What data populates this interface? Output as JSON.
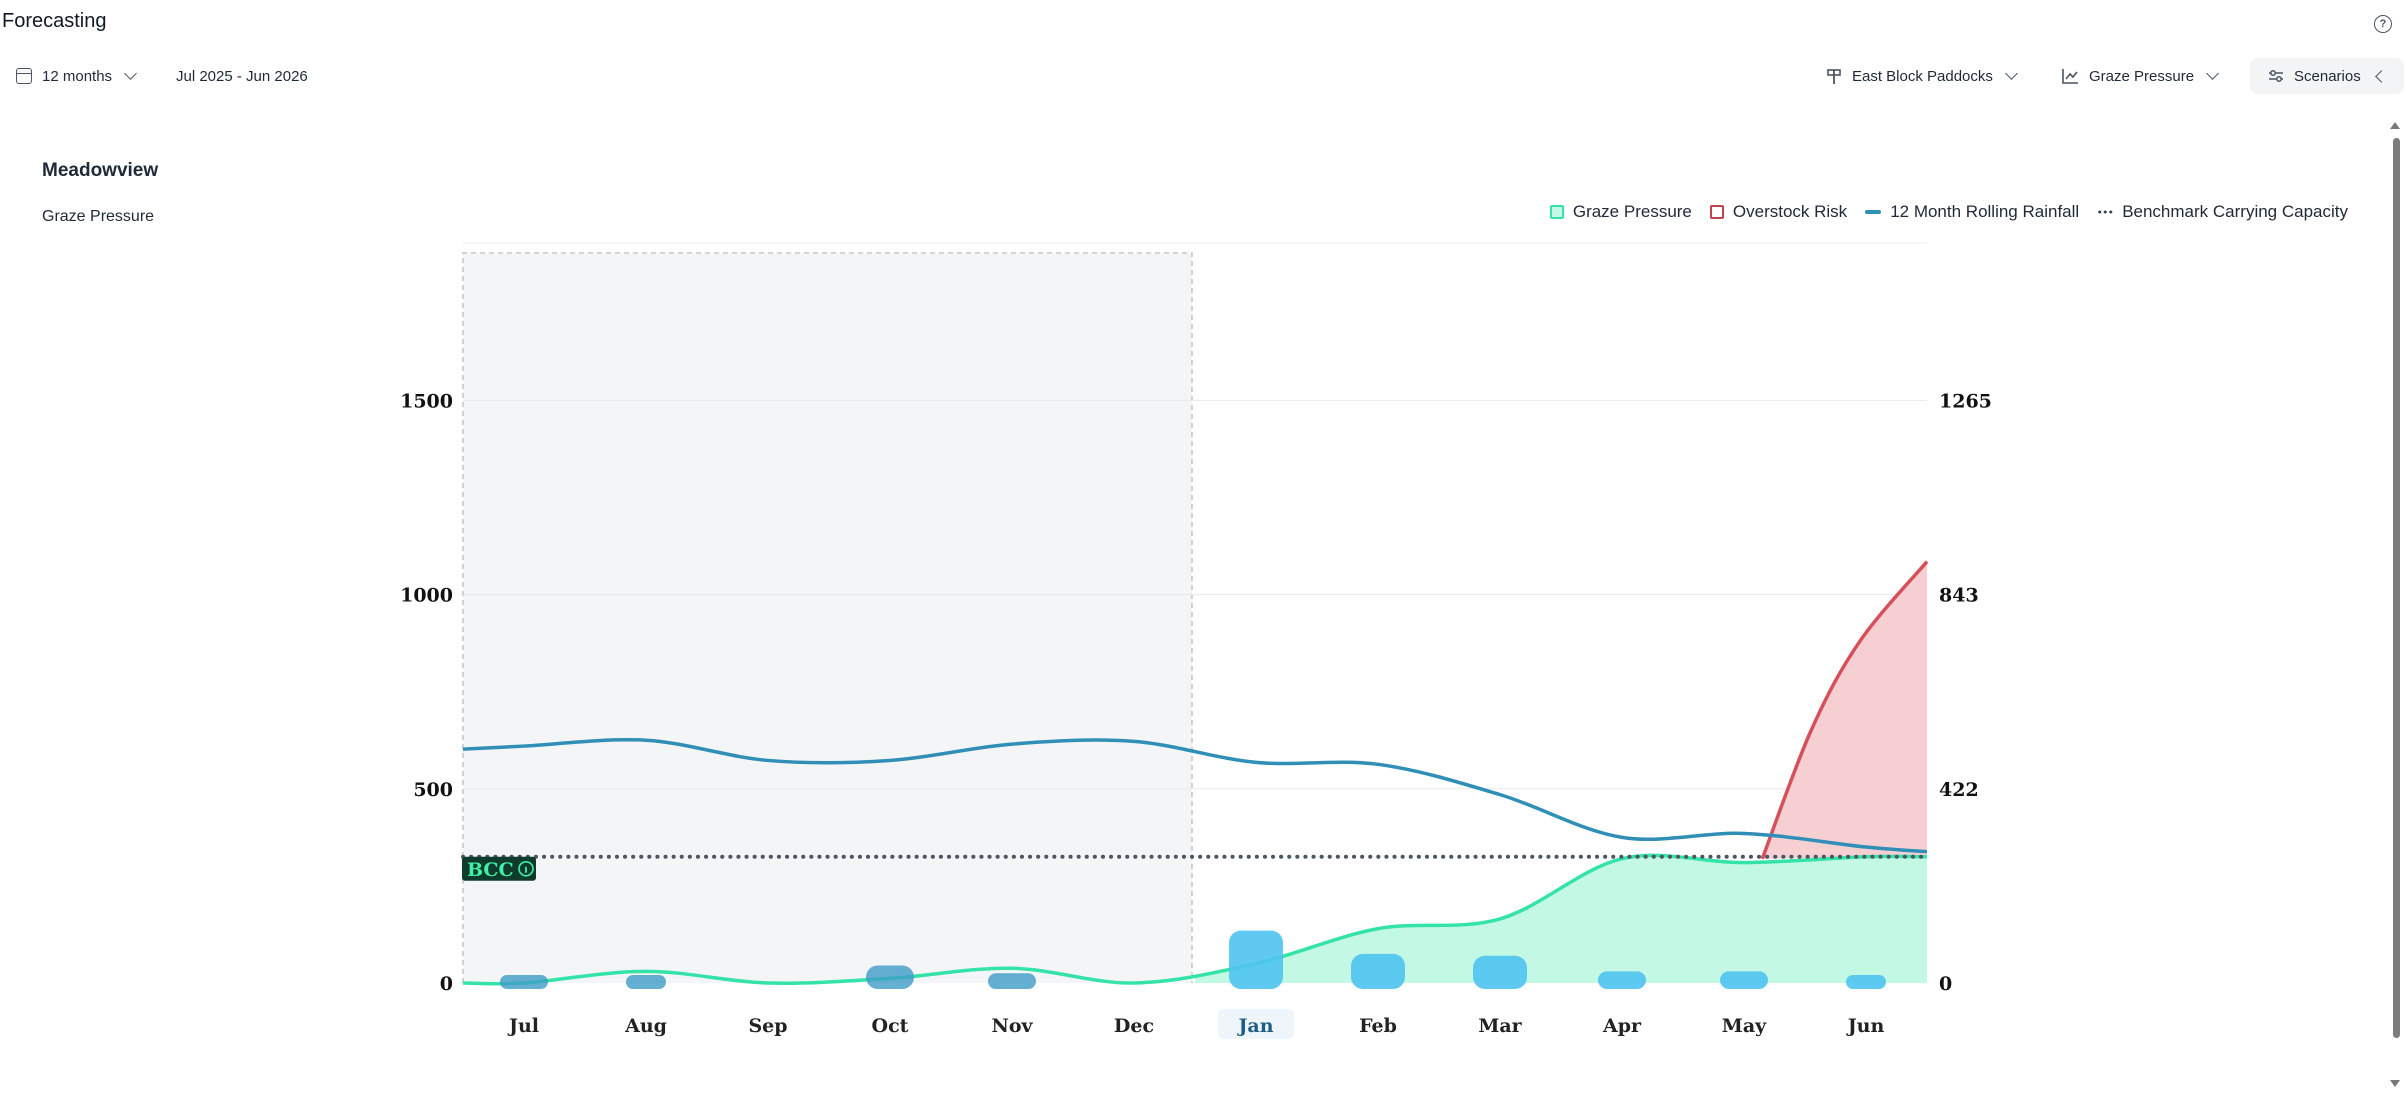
{
  "page": {
    "title": "Forecasting"
  },
  "toolbar": {
    "period_label": "12 months",
    "date_range": "Jul 2025 - Jun 2026",
    "location_label": "East Block Paddocks",
    "metric_label": "Graze Pressure",
    "scenarios_label": "Scenarios"
  },
  "icons": {
    "calendar": "calendar-icon",
    "location": "signpost-icon",
    "metric": "line-chart-icon",
    "scenarios": "sliders-icon",
    "help": "help-circle-icon"
  },
  "panel": {
    "title": "Meadowview",
    "subtitle": "Graze Pressure"
  },
  "colors": {
    "graze": "#34e3a8",
    "graze_fill": "#c3f8e4",
    "overstock": "#d5505a",
    "overstock_fill": "#f5cfd1",
    "rainfall": "#2f8fb6",
    "benchmark": "#4b5563",
    "rain_bars": "#4fc3f0",
    "past_bg": "#f4f5f7",
    "bcc_badge": "#0e3b2c",
    "bcc_text": "#3ef0a8"
  },
  "chart_data": {
    "type": "area",
    "categories": [
      "Jul",
      "Aug",
      "Sep",
      "Oct",
      "Nov",
      "Dec",
      "Jan",
      "Feb",
      "Mar",
      "Apr",
      "May",
      "Jun"
    ],
    "highlighted_category": "Jan",
    "shaded_region": [
      "Jul",
      "Dec"
    ],
    "y_left_ticks": [
      "0",
      "500",
      "1000",
      "1500"
    ],
    "y_right_ticks": [
      "0",
      "422",
      "843",
      "1265"
    ],
    "ylim_left": [
      0,
      1900
    ],
    "grid": true,
    "legend_position": "top-right",
    "series": [
      {
        "name": "Graze Pressure",
        "values": [
          0,
          30,
          0,
          12,
          38,
          0,
          50,
          140,
          165,
          320,
          310,
          325
        ],
        "style": "area"
      },
      {
        "name": "Overstock Risk",
        "values": [
          null,
          null,
          null,
          null,
          null,
          null,
          null,
          null,
          null,
          null,
          320,
          1085
        ],
        "start_at": 10.15,
        "style": "area"
      },
      {
        "name": "12 Month Rolling Rainfall",
        "values": [
          610,
          625,
          573,
          573,
          615,
          622,
          568,
          563,
          485,
          375,
          385,
          350
        ],
        "style": "line"
      },
      {
        "name": "Benchmark Carrying Capacity",
        "value": 325,
        "style": "dotted"
      }
    ],
    "rain_bars": [
      {
        "category": "Jul",
        "value": 20
      },
      {
        "category": "Aug",
        "value": 5
      },
      {
        "category": "Oct",
        "value": 45
      },
      {
        "category": "Nov",
        "value": 25
      },
      {
        "category": "Jan",
        "value": 135
      },
      {
        "category": "Feb",
        "value": 75
      },
      {
        "category": "Mar",
        "value": 70
      },
      {
        "category": "Apr",
        "value": 30
      },
      {
        "category": "May",
        "value": 30
      },
      {
        "category": "Jun",
        "value": 10
      }
    ],
    "bcc_label": "BCC"
  }
}
